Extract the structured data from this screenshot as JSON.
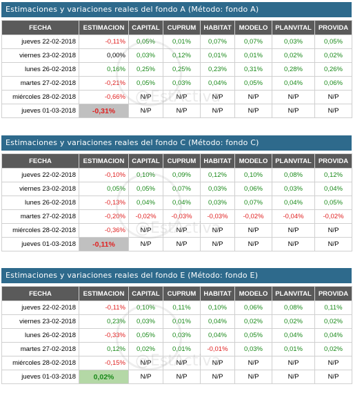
{
  "columns": [
    "FECHA",
    "ESTIMACION",
    "CAPITAL",
    "CUPRUM",
    "HABITAT",
    "MODELO",
    "PLANVITAL",
    "PROVIDA"
  ],
  "watermark": "@EstActiva",
  "colors": {
    "banner": "#2e6a8c",
    "header": "#5a5a5a",
    "positive": "#1a8a1a",
    "negative": "#e02020",
    "highlight_gray": "#c0c0c0",
    "highlight_green": "#b4d8a6"
  },
  "blocks": [
    {
      "title": "Estimaciones y variaciones reales del fondo A (Método: fondo A)",
      "rows": [
        {
          "date": "jueves 22-02-2018",
          "cells": [
            "-0,11%",
            "0,05%",
            "0,01%",
            "0,07%",
            "0,07%",
            "0,03%",
            "0,05%"
          ],
          "signs": [
            "neg",
            "pos",
            "pos",
            "pos",
            "pos",
            "pos",
            "pos"
          ]
        },
        {
          "date": "viernes 23-02-2018",
          "cells": [
            "0,00%",
            "0,03%",
            "0,12%",
            "0,01%",
            "0,01%",
            "0,02%",
            "0,02%"
          ],
          "signs": [
            "zero",
            "pos",
            "pos",
            "pos",
            "pos",
            "pos",
            "pos"
          ]
        },
        {
          "date": "lunes 26-02-2018",
          "cells": [
            "0,16%",
            "0,25%",
            "0,25%",
            "0,23%",
            "0,31%",
            "0,28%",
            "0,26%"
          ],
          "signs": [
            "pos",
            "pos",
            "pos",
            "pos",
            "pos",
            "pos",
            "pos"
          ]
        },
        {
          "date": "martes 27-02-2018",
          "cells": [
            "-0,21%",
            "0,05%",
            "0,03%",
            "0,04%",
            "0,05%",
            "0,04%",
            "0,06%"
          ],
          "signs": [
            "neg",
            "pos",
            "pos",
            "pos",
            "pos",
            "pos",
            "pos"
          ]
        },
        {
          "date": "miércoles 28-02-2018",
          "cells": [
            "-0,66%",
            "N/P",
            "N/P",
            "N/P",
            "N/P",
            "N/P",
            "N/P"
          ],
          "signs": [
            "neg",
            "np",
            "np",
            "np",
            "np",
            "np",
            "np"
          ]
        },
        {
          "date": "jueves 01-03-2018",
          "cells": [
            "-0,31%",
            "N/P",
            "N/P",
            "N/P",
            "N/P",
            "N/P",
            "N/P"
          ],
          "signs": [
            "hlneg",
            "np",
            "np",
            "np",
            "np",
            "np",
            "np"
          ]
        }
      ]
    },
    {
      "title": "Estimaciones y variaciones reales del fondo C (Método: fondo C)",
      "rows": [
        {
          "date": "jueves 22-02-2018",
          "cells": [
            "-0,10%",
            "0,10%",
            "0,09%",
            "0,12%",
            "0,10%",
            "0,08%",
            "0,12%"
          ],
          "signs": [
            "neg",
            "pos",
            "pos",
            "pos",
            "pos",
            "pos",
            "pos"
          ]
        },
        {
          "date": "viernes 23-02-2018",
          "cells": [
            "0,05%",
            "0,05%",
            "0,07%",
            "0,03%",
            "0,06%",
            "0,03%",
            "0,04%"
          ],
          "signs": [
            "pos",
            "pos",
            "pos",
            "pos",
            "pos",
            "pos",
            "pos"
          ]
        },
        {
          "date": "lunes 26-02-2018",
          "cells": [
            "-0,13%",
            "0,04%",
            "0,04%",
            "0,03%",
            "0,07%",
            "0,04%",
            "0,05%"
          ],
          "signs": [
            "neg",
            "pos",
            "pos",
            "pos",
            "pos",
            "pos",
            "pos"
          ]
        },
        {
          "date": "martes 27-02-2018",
          "cells": [
            "-0,20%",
            "-0,02%",
            "-0,03%",
            "-0,03%",
            "-0,02%",
            "-0,04%",
            "-0,02%"
          ],
          "signs": [
            "neg",
            "neg",
            "neg",
            "neg",
            "neg",
            "neg",
            "neg"
          ]
        },
        {
          "date": "miércoles 28-02-2018",
          "cells": [
            "-0,36%",
            "N/P",
            "N/P",
            "N/P",
            "N/P",
            "N/P",
            "N/P"
          ],
          "signs": [
            "neg",
            "np",
            "np",
            "np",
            "np",
            "np",
            "np"
          ]
        },
        {
          "date": "jueves 01-03-2018",
          "cells": [
            "-0,11%",
            "N/P",
            "N/P",
            "N/P",
            "N/P",
            "N/P",
            "N/P"
          ],
          "signs": [
            "hlneg",
            "np",
            "np",
            "np",
            "np",
            "np",
            "np"
          ]
        }
      ]
    },
    {
      "title": "Estimaciones y variaciones reales del fondo E (Método: fondo E)",
      "rows": [
        {
          "date": "jueves 22-02-2018",
          "cells": [
            "-0,11%",
            "0,10%",
            "0,11%",
            "0,10%",
            "0,06%",
            "0,08%",
            "0,11%"
          ],
          "signs": [
            "neg",
            "pos",
            "pos",
            "pos",
            "pos",
            "pos",
            "pos"
          ]
        },
        {
          "date": "viernes 23-02-2018",
          "cells": [
            "0,23%",
            "0,03%",
            "0,01%",
            "0,04%",
            "0,02%",
            "0,02%",
            "0,02%"
          ],
          "signs": [
            "pos",
            "pos",
            "pos",
            "pos",
            "pos",
            "pos",
            "pos"
          ]
        },
        {
          "date": "lunes 26-02-2018",
          "cells": [
            "-0,33%",
            "0,05%",
            "0,03%",
            "0,04%",
            "0,05%",
            "0,04%",
            "0,04%"
          ],
          "signs": [
            "neg",
            "pos",
            "pos",
            "pos",
            "pos",
            "pos",
            "pos"
          ]
        },
        {
          "date": "martes 27-02-2018",
          "cells": [
            "0,12%",
            "0,02%",
            "0,01%",
            "-0,01%",
            "0,03%",
            "0,01%",
            "0,02%"
          ],
          "signs": [
            "pos",
            "pos",
            "pos",
            "neg",
            "pos",
            "pos",
            "pos"
          ]
        },
        {
          "date": "miércoles 28-02-2018",
          "cells": [
            "-0,15%",
            "N/P",
            "N/P",
            "N/P",
            "N/P",
            "N/P",
            "N/P"
          ],
          "signs": [
            "neg",
            "np",
            "np",
            "np",
            "np",
            "np",
            "np"
          ]
        },
        {
          "date": "jueves 01-03-2018",
          "cells": [
            "0,02%",
            "N/P",
            "N/P",
            "N/P",
            "N/P",
            "N/P",
            "N/P"
          ],
          "signs": [
            "hlpos",
            "np",
            "np",
            "np",
            "np",
            "np",
            "np"
          ]
        }
      ]
    }
  ]
}
